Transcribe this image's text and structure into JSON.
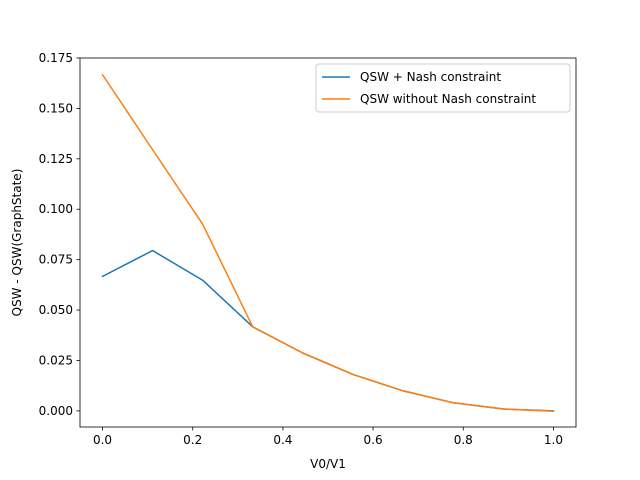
{
  "chart_data": {
    "type": "line",
    "title": "",
    "xlabel": "V0/V1",
    "ylabel": "QSW - QSW(GraphState)",
    "xlim": [
      -0.05,
      1.05
    ],
    "ylim": [
      -0.008,
      0.175
    ],
    "xticks": [
      0.0,
      0.2,
      0.4,
      0.6,
      0.8,
      1.0
    ],
    "xtick_labels": [
      "0.0",
      "0.2",
      "0.4",
      "0.6",
      "0.8",
      "1.0"
    ],
    "yticks": [
      0.0,
      0.025,
      0.05,
      0.075,
      0.1,
      0.125,
      0.15,
      0.175
    ],
    "ytick_labels": [
      "0.000",
      "0.025",
      "0.050",
      "0.075",
      "0.100",
      "0.125",
      "0.150",
      "0.175"
    ],
    "grid": false,
    "legend": "top-right",
    "x": [
      0.0,
      0.111,
      0.222,
      0.333,
      0.444,
      0.556,
      0.667,
      0.778,
      0.889,
      1.0
    ],
    "series": [
      {
        "name": "QSW + Nash constraint",
        "color": "#1f77b4",
        "values": [
          0.0667,
          0.0795,
          0.0648,
          0.0417,
          0.0287,
          0.018,
          0.0099,
          0.004,
          0.0009,
          0.0
        ]
      },
      {
        "name": "QSW without Nash constraint",
        "color": "#ff7f0e",
        "values": [
          0.1667,
          0.1295,
          0.0926,
          0.0417,
          0.0287,
          0.018,
          0.0099,
          0.004,
          0.0009,
          -0.0002
        ]
      }
    ]
  }
}
